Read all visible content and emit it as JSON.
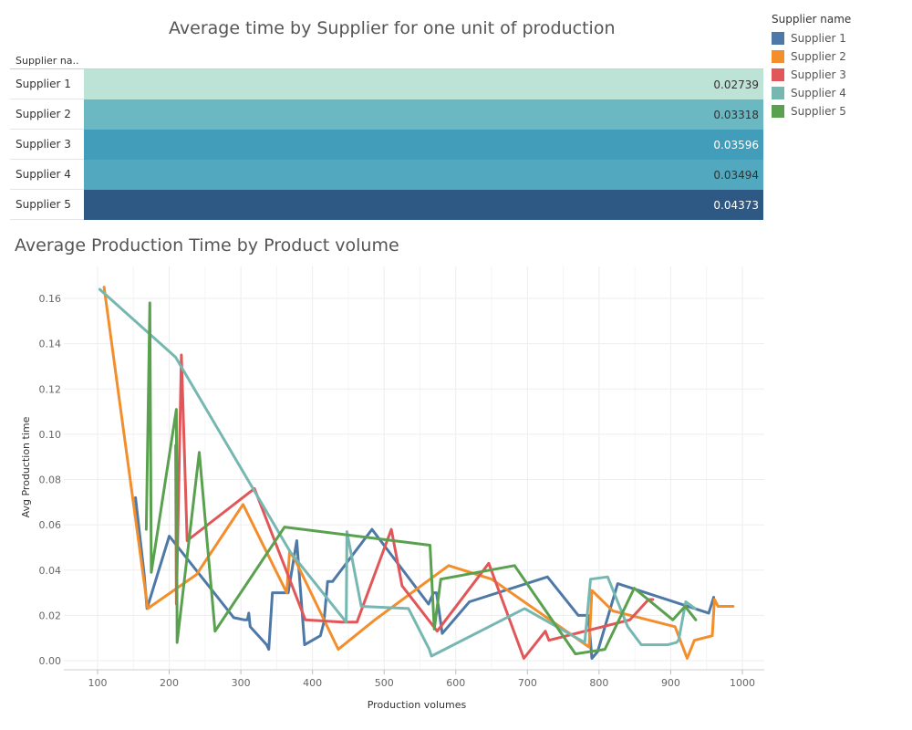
{
  "top_chart": {
    "title": "Average time by Supplier for one unit of production",
    "header_label": "Supplier na..",
    "rows": [
      {
        "label": "Supplier 1",
        "value": "0.02739",
        "color": "#bde3d7",
        "text_color": "#333333"
      },
      {
        "label": "Supplier 2",
        "value": "0.03318",
        "color": "#6cb8c2",
        "text_color": "#333333"
      },
      {
        "label": "Supplier 3",
        "value": "0.03596",
        "color": "#429dba",
        "text_color": "#ffffff"
      },
      {
        "label": "Supplier 4",
        "value": "0.03494",
        "color": "#52a8bf",
        "text_color": "#333333"
      },
      {
        "label": "Supplier 5",
        "value": "0.04373",
        "color": "#2e5985",
        "text_color": "#ffffff"
      }
    ]
  },
  "legend": {
    "title": "Supplier name",
    "items": [
      {
        "label": "Supplier 1",
        "color": "#4e79a7"
      },
      {
        "label": "Supplier 2",
        "color": "#f28e2b"
      },
      {
        "label": "Supplier 3",
        "color": "#e15759"
      },
      {
        "label": "Supplier 4",
        "color": "#76b7b2"
      },
      {
        "label": "Supplier 5",
        "color": "#59a14f"
      }
    ]
  },
  "chart_data": {
    "type": "line",
    "title": "Average Production Time by Product volume",
    "xlabel": "Production volumes",
    "ylabel": "Avg Production time",
    "xlim": [
      50,
      1030
    ],
    "ylim": [
      -0.005,
      0.175
    ],
    "x_ticks": [
      "100",
      "200",
      "300",
      "400",
      "500",
      "600",
      "700",
      "800",
      "900",
      "1000"
    ],
    "y_ticks": [
      "0.00",
      "0.02",
      "0.04",
      "0.06",
      "0.08",
      "0.10",
      "0.12",
      "0.14",
      "0.16"
    ],
    "grid": true,
    "series": [
      {
        "name": "Supplier 1",
        "color": "#4e79a7",
        "points": [
          [
            153,
            0.072
          ],
          [
            165,
            0.038
          ],
          [
            169,
            0.023
          ],
          [
            200,
            0.055
          ],
          [
            290,
            0.019
          ],
          [
            305,
            0.018
          ],
          [
            309,
            0.018
          ],
          [
            311,
            0.021
          ],
          [
            313,
            0.015
          ],
          [
            336,
            0.007
          ],
          [
            339,
            0.005
          ],
          [
            344,
            0.03
          ],
          [
            366,
            0.03
          ],
          [
            378,
            0.053
          ],
          [
            389,
            0.007
          ],
          [
            411,
            0.011
          ],
          [
            416,
            0.017
          ],
          [
            421,
            0.035
          ],
          [
            428,
            0.035
          ],
          [
            483,
            0.058
          ],
          [
            562,
            0.025
          ],
          [
            569,
            0.03
          ],
          [
            573,
            0.03
          ],
          [
            581,
            0.012
          ],
          [
            619,
            0.026
          ],
          [
            728,
            0.037
          ],
          [
            771,
            0.02
          ],
          [
            785,
            0.02
          ],
          [
            790,
            0.001
          ],
          [
            798,
            0.004
          ],
          [
            826,
            0.034
          ],
          [
            953,
            0.021
          ],
          [
            960,
            0.028
          ]
        ]
      },
      {
        "name": "Supplier 2",
        "color": "#f28e2b",
        "points": [
          [
            109,
            0.165
          ],
          [
            170,
            0.023
          ],
          [
            238,
            0.038
          ],
          [
            303,
            0.069
          ],
          [
            364,
            0.03
          ],
          [
            368,
            0.048
          ],
          [
            375,
            0.045
          ],
          [
            436,
            0.005
          ],
          [
            487,
            0.018
          ],
          [
            590,
            0.042
          ],
          [
            650,
            0.036
          ],
          [
            786,
            0.006
          ],
          [
            790,
            0.031
          ],
          [
            819,
            0.022
          ],
          [
            906,
            0.015
          ],
          [
            923,
            0.001
          ],
          [
            933,
            0.009
          ],
          [
            958,
            0.011
          ],
          [
            961,
            0.027
          ],
          [
            966,
            0.024
          ],
          [
            982,
            0.024
          ],
          [
            987,
            0.024
          ]
        ]
      },
      {
        "name": "Supplier 3",
        "color": "#e15759",
        "points": [
          [
            209,
            0.095
          ],
          [
            210,
            0.025
          ],
          [
            217,
            0.135
          ],
          [
            225,
            0.053
          ],
          [
            319,
            0.076
          ],
          [
            390,
            0.018
          ],
          [
            441,
            0.017
          ],
          [
            462,
            0.017
          ],
          [
            510,
            0.058
          ],
          [
            525,
            0.033
          ],
          [
            574,
            0.013
          ],
          [
            646,
            0.043
          ],
          [
            695,
            0.001
          ],
          [
            725,
            0.013
          ],
          [
            730,
            0.009
          ],
          [
            843,
            0.018
          ],
          [
            869,
            0.027
          ],
          [
            875,
            0.027
          ]
        ]
      },
      {
        "name": "Supplier 4",
        "color": "#76b7b2",
        "points": [
          [
            103,
            0.164
          ],
          [
            209,
            0.134
          ],
          [
            369,
            0.048
          ],
          [
            447,
            0.017
          ],
          [
            448,
            0.057
          ],
          [
            468,
            0.024
          ],
          [
            534,
            0.023
          ],
          [
            563,
            0.005
          ],
          [
            566,
            0.002
          ],
          [
            696,
            0.023
          ],
          [
            780,
            0.008
          ],
          [
            788,
            0.036
          ],
          [
            812,
            0.037
          ],
          [
            840,
            0.015
          ],
          [
            859,
            0.007
          ],
          [
            896,
            0.007
          ],
          [
            908,
            0.008
          ],
          [
            911,
            0.009
          ],
          [
            921,
            0.026
          ],
          [
            934,
            0.023
          ]
        ]
      },
      {
        "name": "Supplier 5",
        "color": "#59a14f",
        "points": [
          [
            168,
            0.058
          ],
          [
            173,
            0.158
          ],
          [
            175,
            0.039
          ],
          [
            210,
            0.111
          ],
          [
            211,
            0.008
          ],
          [
            242,
            0.092
          ],
          [
            264,
            0.013
          ],
          [
            361,
            0.059
          ],
          [
            564,
            0.051
          ],
          [
            570,
            0.014
          ],
          [
            579,
            0.036
          ],
          [
            682,
            0.042
          ],
          [
            767,
            0.003
          ],
          [
            808,
            0.005
          ],
          [
            849,
            0.032
          ],
          [
            903,
            0.018
          ],
          [
            920,
            0.024
          ],
          [
            935,
            0.018
          ]
        ]
      }
    ]
  }
}
